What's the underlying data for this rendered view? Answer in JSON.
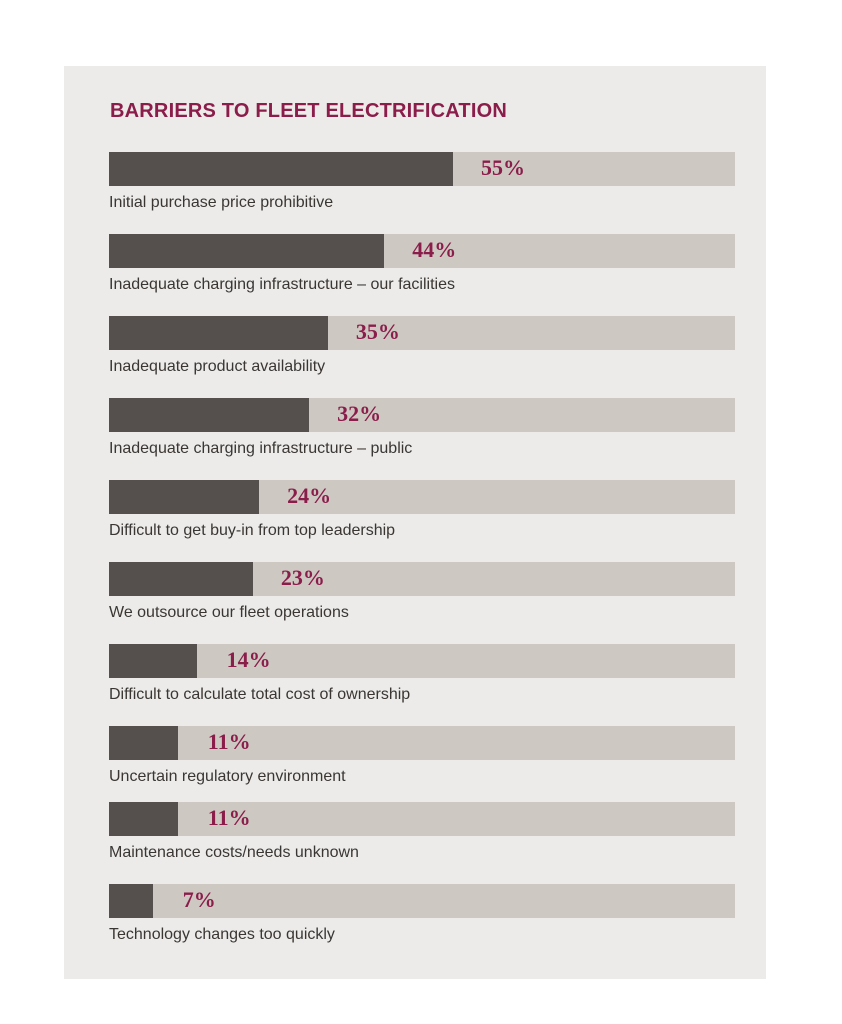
{
  "chart_data": {
    "type": "bar",
    "orientation": "horizontal",
    "title": "BARRIERS TO FLEET ELECTRIFICATION",
    "xlim": [
      0,
      100
    ],
    "categories": [
      "Initial purchase price prohibitive",
      "Inadequate charging infrastructure – our facilities",
      "Inadequate product availability",
      "Inadequate charging infrastructure – public",
      "Difficult to get buy-in from top leadership",
      "We outsource our fleet operations",
      "Difficult to calculate total cost of ownership",
      "Uncertain regulatory environment",
      "Maintenance costs/needs unknown",
      "Technology changes too quickly"
    ],
    "values": [
      55,
      44,
      35,
      32,
      24,
      23,
      14,
      11,
      11,
      7
    ],
    "value_labels": [
      "55%",
      "44%",
      "35%",
      "32%",
      "24%",
      "23%",
      "14%",
      "11%",
      "11%",
      "7%"
    ],
    "colors": {
      "fill": "#55504d",
      "track": "#cdc8c2",
      "accent": "#8b1d4b",
      "panel": "#ecebe9"
    }
  }
}
